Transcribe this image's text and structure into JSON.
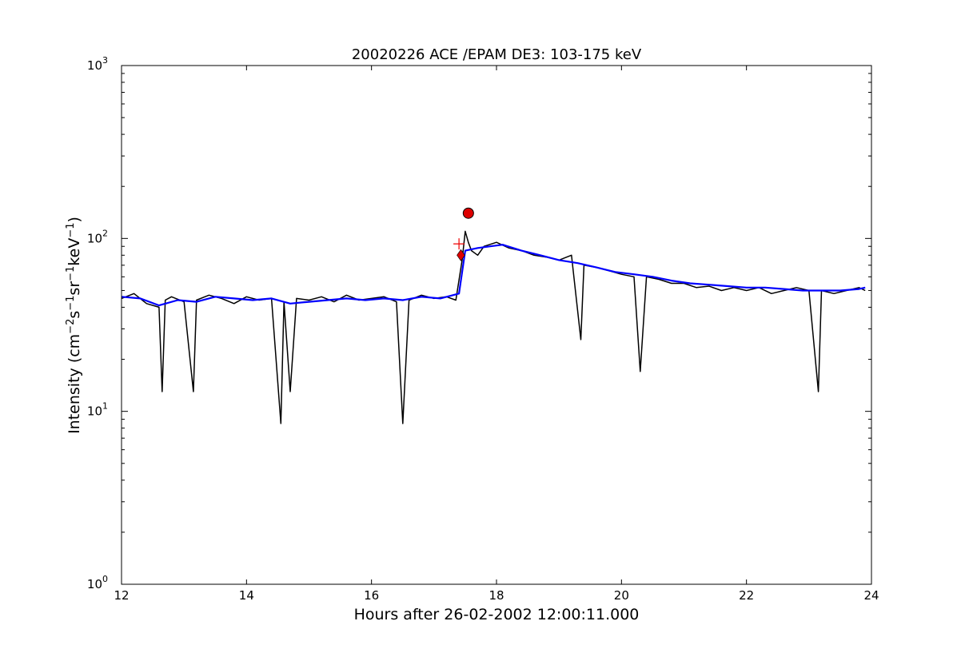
{
  "chart_data": {
    "type": "line",
    "title": "20020226 ACE /EPAM DE3: 103-175 keV",
    "xlabel": "Hours after 26-02-2002 12:00:11.000",
    "ylabel": {
      "parts": [
        "Intensity (cm",
        "−2",
        "s",
        "−1",
        "sr",
        "−1",
        "keV",
        "−1",
        ")"
      ]
    },
    "xlim": [
      12,
      24
    ],
    "ylim": [
      1,
      1000
    ],
    "yscale": "log",
    "x_ticks": [
      {
        "value": 12,
        "label": "12"
      },
      {
        "value": 14,
        "label": "14"
      },
      {
        "value": 16,
        "label": "16"
      },
      {
        "value": 18,
        "label": "18"
      },
      {
        "value": 20,
        "label": "20"
      },
      {
        "value": 22,
        "label": "22"
      },
      {
        "value": 24,
        "label": "24"
      }
    ],
    "y_ticks": [
      {
        "value": 1,
        "base": "10",
        "exp": "0"
      },
      {
        "value": 10,
        "base": "10",
        "exp": "1"
      },
      {
        "value": 100,
        "base": "10",
        "exp": "2"
      },
      {
        "value": 1000,
        "base": "10",
        "exp": "3"
      }
    ],
    "grid": false,
    "colors": {
      "raw": "#000000",
      "smoothed": "#0000ff",
      "marker": "#dd0000",
      "plus": "#ee0000"
    },
    "series": [
      {
        "id": "raw",
        "style": "line",
        "x": [
          12.0,
          12.2,
          12.4,
          12.6,
          12.65,
          12.7,
          12.8,
          13.0,
          13.15,
          13.2,
          13.4,
          13.6,
          13.8,
          14.0,
          14.2,
          14.4,
          14.55,
          14.6,
          14.7,
          14.8,
          15.0,
          15.2,
          15.4,
          15.6,
          15.8,
          16.0,
          16.2,
          16.4,
          16.5,
          16.6,
          16.8,
          17.0,
          17.2,
          17.35,
          17.45,
          17.5,
          17.55,
          17.6,
          17.7,
          17.8,
          18.0,
          18.2,
          18.4,
          18.6,
          18.8,
          19.0,
          19.2,
          19.35,
          19.4,
          19.6,
          19.8,
          20.0,
          20.2,
          20.3,
          20.4,
          20.6,
          20.8,
          21.0,
          21.2,
          21.4,
          21.6,
          21.8,
          22.0,
          22.2,
          22.4,
          22.6,
          22.8,
          23.0,
          23.15,
          23.2,
          23.4,
          23.6,
          23.8,
          23.9
        ],
        "y": [
          45,
          48,
          42,
          40,
          13,
          44,
          46,
          43,
          13,
          44,
          47,
          45,
          42,
          46,
          44,
          45,
          8.5,
          43,
          13,
          45,
          44,
          46,
          43,
          47,
          44,
          45,
          46,
          43,
          8.5,
          44,
          47,
          45,
          46,
          44,
          75,
          110,
          95,
          85,
          80,
          90,
          95,
          88,
          85,
          80,
          78,
          75,
          80,
          26,
          70,
          68,
          65,
          62,
          60,
          17,
          60,
          58,
          55,
          55,
          52,
          53,
          50,
          52,
          50,
          52,
          48,
          50,
          52,
          50,
          13,
          50,
          48,
          50,
          52,
          50
        ]
      },
      {
        "id": "smoothed",
        "style": "line",
        "x": [
          12.0,
          12.3,
          12.6,
          12.9,
          13.2,
          13.5,
          13.8,
          14.1,
          14.4,
          14.7,
          15.0,
          15.3,
          15.6,
          15.9,
          16.2,
          16.5,
          16.8,
          17.1,
          17.4,
          17.5,
          17.7,
          17.9,
          18.1,
          18.4,
          18.7,
          19.0,
          19.3,
          19.6,
          19.9,
          20.2,
          20.5,
          20.8,
          21.1,
          21.4,
          21.7,
          22.0,
          22.3,
          22.6,
          22.9,
          23.2,
          23.5,
          23.8,
          23.9
        ],
        "y": [
          46,
          45,
          41,
          44,
          43,
          46,
          45,
          44,
          45,
          42,
          43,
          44,
          45,
          44,
          45,
          44,
          46,
          45,
          48,
          85,
          88,
          90,
          92,
          85,
          80,
          75,
          72,
          68,
          64,
          62,
          60,
          57,
          55,
          54,
          53,
          52,
          52,
          51,
          50,
          50,
          50,
          51,
          52
        ]
      }
    ],
    "markers": [
      {
        "id": "peak-marker",
        "shape": "circle",
        "x": 17.55,
        "y": 140
      },
      {
        "id": "onset-marker",
        "shape": "diamond",
        "x": 17.43,
        "y": 80
      },
      {
        "id": "onset-plus-marker",
        "shape": "plus",
        "x": 17.4,
        "y": 93
      }
    ]
  }
}
